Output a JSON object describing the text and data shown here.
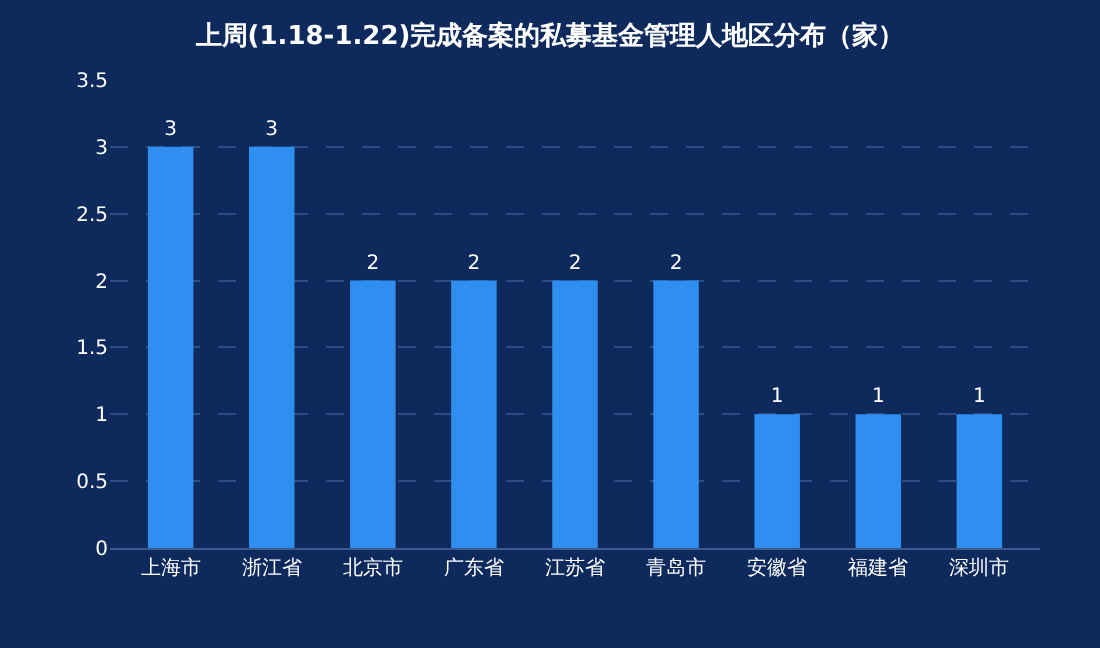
{
  "chart_data": {
    "type": "bar",
    "title": "上周(1.18-1.22)完成备案的私募基金管理人地区分布（家）",
    "categories": [
      "上海市",
      "浙江省",
      "北京市",
      "广东省",
      "江苏省",
      "青岛市",
      "安徽省",
      "福建省",
      "深圳市"
    ],
    "values": [
      3,
      3,
      2,
      2,
      2,
      2,
      1,
      1,
      1
    ],
    "color": "#2f8ff0",
    "ylim": [
      0,
      3.5
    ],
    "yticks": [
      0,
      0.5,
      1,
      1.5,
      2,
      2.5,
      3,
      3.5
    ],
    "grid": "y",
    "data_labels": true
  }
}
